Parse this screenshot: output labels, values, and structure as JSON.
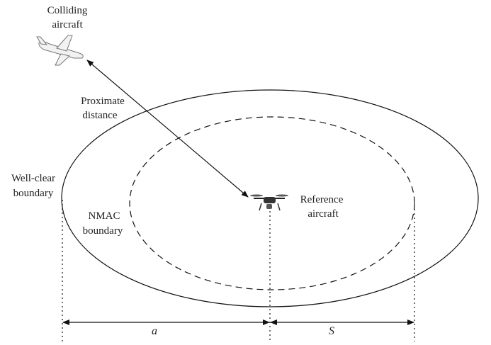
{
  "labels": {
    "colliding": [
      "Colliding",
      "aircraft"
    ],
    "proximate": [
      "Proximate",
      "distance"
    ],
    "wellclear": [
      "Well-clear",
      "boundary"
    ],
    "nmac": [
      "NMAC",
      "boundary"
    ],
    "reference": [
      "Reference",
      "aircraft"
    ],
    "a": "a",
    "s": "S"
  }
}
